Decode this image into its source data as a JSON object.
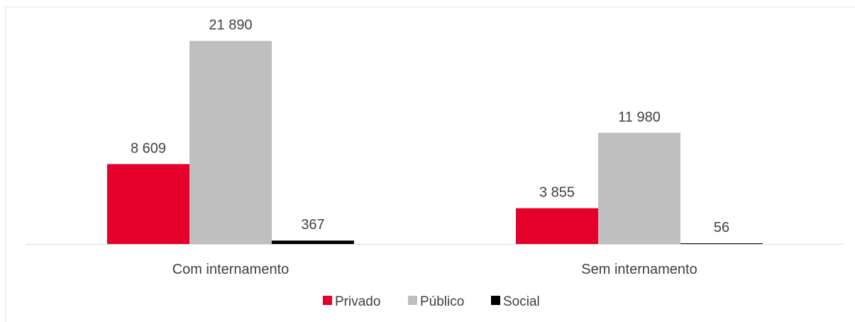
{
  "chart_data": {
    "type": "bar",
    "categories": [
      "Com internamento",
      "Sem internamento"
    ],
    "series": [
      {
        "name": "Privado",
        "values": [
          8609,
          3855
        ],
        "labels": [
          "8 609",
          "3 855"
        ],
        "color": "#e4002b"
      },
      {
        "name": "Público",
        "values": [
          21890,
          11980
        ],
        "labels": [
          "21 890",
          "11 980"
        ],
        "color": "#bfbfbf"
      },
      {
        "name": "Social",
        "values": [
          367,
          56
        ],
        "labels": [
          "367",
          "56"
        ],
        "color": "#000000"
      }
    ],
    "ylim": [
      0,
      24000
    ],
    "grid": false,
    "legend": "bottom",
    "axis_color": "#d9d9d9",
    "text_color": "#404040"
  }
}
